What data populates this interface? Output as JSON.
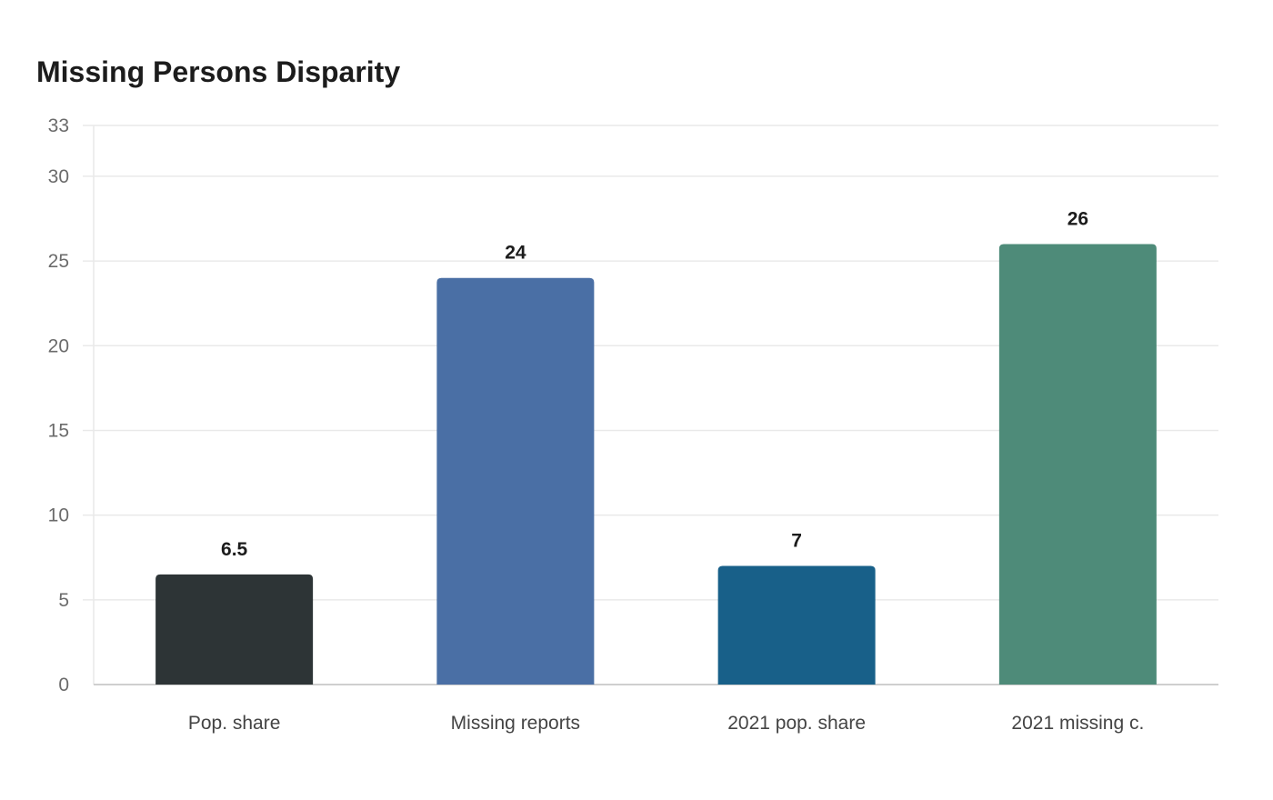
{
  "chart_data": {
    "type": "bar",
    "title": "Missing Persons Disparity",
    "xlabel": "",
    "ylabel": "",
    "categories": [
      "Pop. share",
      "Missing reports",
      "2021 pop. share",
      "2021 missing c."
    ],
    "values": [
      6.5,
      24,
      7,
      26
    ],
    "value_labels": [
      "6.5",
      "24",
      "7",
      "26"
    ],
    "bar_colors": [
      "#2d3436",
      "#4a6fa5",
      "#186089",
      "#4e8b79"
    ],
    "ylim": [
      0,
      33
    ],
    "yticks": [
      0,
      5,
      10,
      15,
      20,
      25,
      30,
      33
    ],
    "grid": true,
    "legend": "none"
  },
  "colors": {
    "grid": "#e9e9e9",
    "axis": "#cfcfcf",
    "title": "#1c1c1c"
  }
}
